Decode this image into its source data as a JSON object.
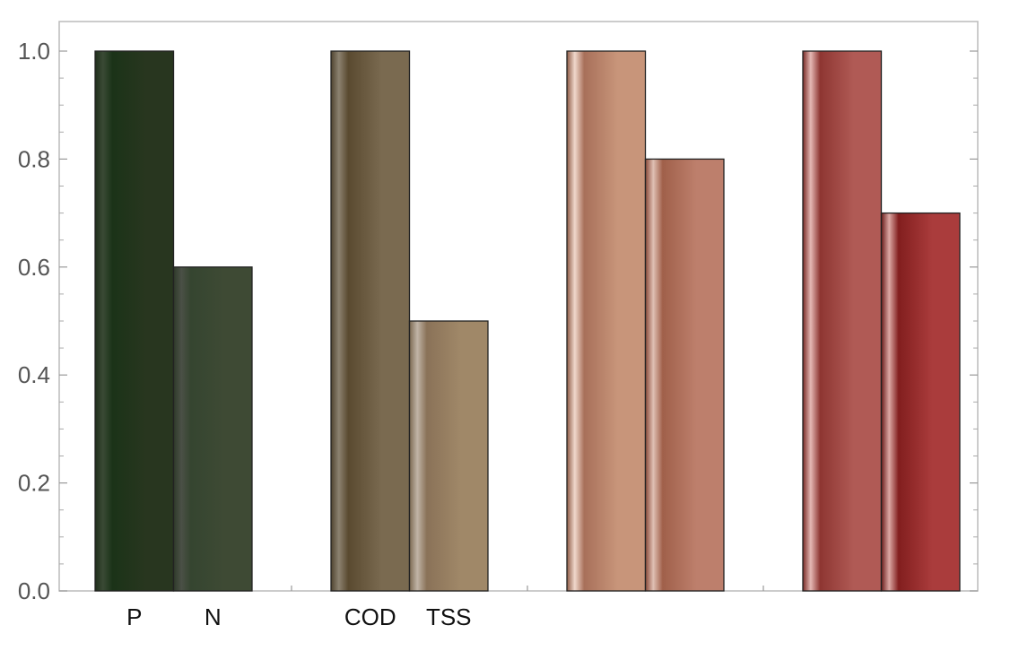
{
  "chart_data": {
    "type": "bar",
    "ylim": [
      0,
      1.05
    ],
    "y_ticks": [
      "0.0",
      "0.2",
      "0.4",
      "0.6",
      "0.8",
      "1.0"
    ],
    "y_tick_values": [
      0,
      0.2,
      0.4,
      0.6,
      0.8,
      1.0
    ],
    "grid": false,
    "groups": [
      {
        "bars": [
          {
            "label": "P",
            "value": 1.0,
            "colors": [
              "#1f2e1a",
              "#3a4a35",
              "#1b3318",
              "#28361f"
            ]
          },
          {
            "label": "N",
            "value": 0.6,
            "colors": [
              "#2f3a2a",
              "#4a5046",
              "#354530",
              "#3e4a34"
            ]
          }
        ]
      },
      {
        "bars": [
          {
            "label": "COD",
            "value": 1.0,
            "colors": [
              "#4f432f",
              "#8c8270",
              "#5a4a30",
              "#7a6a50"
            ]
          },
          {
            "label": "TSS",
            "value": 0.5,
            "colors": [
              "#7c6a52",
              "#c0b4a6",
              "#8a7258",
              "#a08868"
            ]
          }
        ]
      },
      {
        "bars": [
          {
            "label": "",
            "value": 1.0,
            "colors": [
              "#8e5a45",
              "#f0d8cc",
              "#a8705a",
              "#c8957a"
            ]
          },
          {
            "label": "",
            "value": 0.8,
            "colors": [
              "#8a4a38",
              "#e0c0b4",
              "#a0604a",
              "#bd7f6c"
            ]
          }
        ]
      },
      {
        "bars": [
          {
            "label": "",
            "value": 1.0,
            "colors": [
              "#7a2a25",
              "#e4b8b4",
              "#8e3632",
              "#b05a55"
            ]
          },
          {
            "label": "",
            "value": 0.7,
            "colors": [
              "#6a1c1a",
              "#dca8a4",
              "#821e1e",
              "#aa3c3c"
            ]
          }
        ]
      }
    ]
  }
}
